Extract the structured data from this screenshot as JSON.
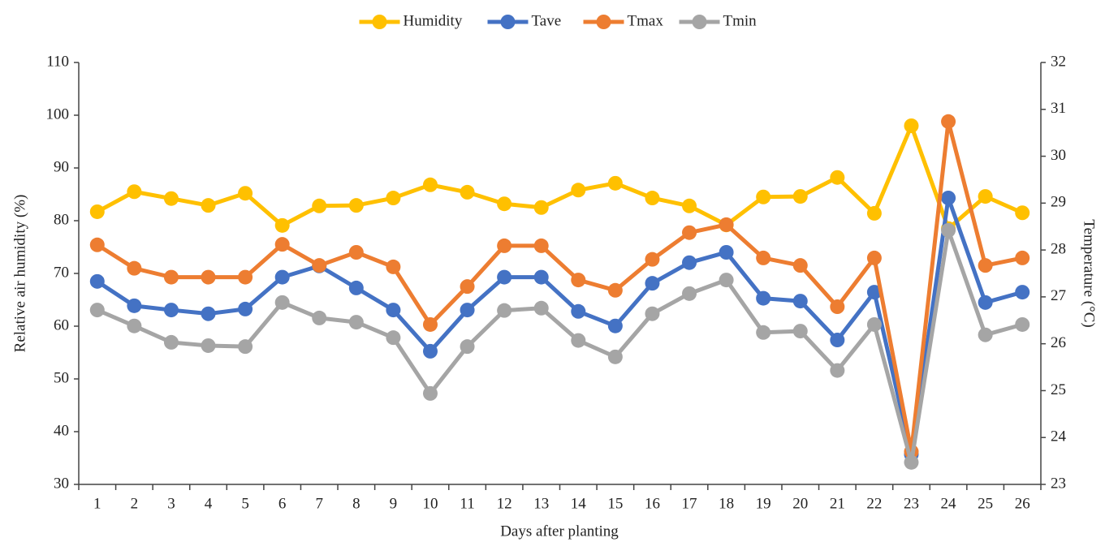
{
  "chart_data": {
    "type": "line",
    "x_label": "Days after planting",
    "y_label": "Relative air humidity (%)",
    "y2_label": "Temperature (°C)",
    "categories": [
      "1",
      "2",
      "3",
      "4",
      "5",
      "6",
      "7",
      "8",
      "9",
      "10",
      "11",
      "12",
      "13",
      "14",
      "15",
      "16",
      "17",
      "18",
      "19",
      "20",
      "21",
      "22",
      "23",
      "24",
      "25",
      "26"
    ],
    "series": [
      {
        "name": "Humidity",
        "color": "#ffc000",
        "axis": "y",
        "values": [
          81.7,
          85.5,
          84.2,
          82.9,
          85.2,
          79.1,
          82.8,
          82.9,
          84.3,
          86.8,
          85.4,
          83.2,
          82.5,
          85.8,
          87.1,
          84.3,
          82.8,
          79.2,
          84.5,
          84.6,
          88.2,
          81.4,
          98.0,
          78.5,
          84.6,
          81.5
        ]
      },
      {
        "name": "Tave",
        "color": "#4472c4",
        "axis": "y2",
        "values": [
          27.33,
          26.81,
          26.72,
          26.64,
          26.74,
          27.42,
          27.66,
          27.19,
          26.72,
          25.84,
          26.72,
          27.42,
          27.42,
          26.69,
          26.38,
          27.29,
          27.73,
          27.95,
          26.97,
          26.91,
          26.08,
          27.1,
          23.64,
          29.11,
          26.88,
          27.1
        ]
      },
      {
        "name": "Tmax",
        "color": "#ed7d31",
        "axis": "y2",
        "values": [
          28.11,
          27.61,
          27.42,
          27.42,
          27.42,
          28.12,
          27.67,
          27.95,
          27.64,
          26.41,
          27.22,
          28.09,
          28.09,
          27.36,
          27.14,
          27.8,
          28.37,
          28.54,
          27.83,
          27.67,
          26.79,
          27.83,
          23.7,
          30.74,
          27.67,
          27.83
        ]
      },
      {
        "name": "Tmin",
        "color": "#a5a5a5",
        "axis": "y2",
        "values": [
          26.72,
          26.38,
          26.03,
          25.96,
          25.94,
          26.88,
          26.55,
          26.46,
          26.13,
          24.94,
          25.94,
          26.71,
          26.76,
          26.07,
          25.72,
          26.64,
          27.07,
          27.36,
          26.24,
          26.27,
          25.43,
          26.41,
          23.47,
          28.42,
          26.19,
          26.41
        ]
      }
    ],
    "ylim": [
      30,
      110
    ],
    "yticks": [
      30,
      40,
      50,
      60,
      70,
      80,
      90,
      100,
      110
    ],
    "y2lim": [
      23,
      32
    ],
    "y2ticks": [
      23,
      24,
      25,
      26,
      27,
      28,
      29,
      30,
      31,
      32
    ],
    "legend": "top",
    "grid": false
  }
}
